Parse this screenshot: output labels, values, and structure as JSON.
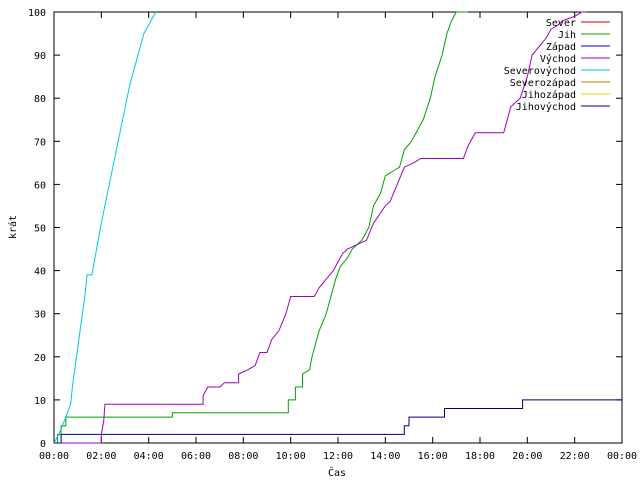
{
  "chart_data": {
    "type": "line",
    "title": "",
    "xlabel": "Čas",
    "ylabel": "krát",
    "xlim": [
      0,
      24
    ],
    "ylim": [
      0,
      100
    ],
    "grid": false,
    "legend_position": "top-right",
    "x_tick_labels": [
      "00:00",
      "02:00",
      "04:00",
      "06:00",
      "08:00",
      "10:00",
      "12:00",
      "14:00",
      "16:00",
      "18:00",
      "20:00",
      "22:00",
      "00:00"
    ],
    "y_tick_labels": [
      "0",
      "10",
      "20",
      "30",
      "40",
      "50",
      "60",
      "70",
      "80",
      "90",
      "100"
    ],
    "series": [
      {
        "name": "Sever",
        "color": "#cc0000",
        "points": []
      },
      {
        "name": "Jih",
        "color": "#00a000",
        "points": [
          [
            0.0,
            0
          ],
          [
            0.15,
            0
          ],
          [
            0.15,
            2
          ],
          [
            0.3,
            2
          ],
          [
            0.3,
            4
          ],
          [
            0.5,
            4
          ],
          [
            0.5,
            6
          ],
          [
            1.0,
            6
          ],
          [
            5.0,
            6
          ],
          [
            5.0,
            7
          ],
          [
            6.0,
            7
          ],
          [
            9.9,
            7
          ],
          [
            9.9,
            10
          ],
          [
            10.2,
            10
          ],
          [
            10.2,
            13
          ],
          [
            10.5,
            13
          ],
          [
            10.5,
            16
          ],
          [
            10.8,
            17
          ],
          [
            10.9,
            20
          ],
          [
            11.0,
            22
          ],
          [
            11.2,
            26
          ],
          [
            11.5,
            30
          ],
          [
            11.7,
            34
          ],
          [
            11.9,
            38
          ],
          [
            12.1,
            41
          ],
          [
            12.4,
            43
          ],
          [
            12.6,
            45
          ],
          [
            12.8,
            46
          ],
          [
            13.0,
            47
          ],
          [
            13.3,
            50
          ],
          [
            13.5,
            55
          ],
          [
            13.8,
            58
          ],
          [
            14.0,
            62
          ],
          [
            14.3,
            63
          ],
          [
            14.6,
            64
          ],
          [
            14.8,
            68
          ],
          [
            15.1,
            70
          ],
          [
            15.4,
            73
          ],
          [
            15.6,
            75
          ],
          [
            15.9,
            80
          ],
          [
            16.1,
            85
          ],
          [
            16.4,
            90
          ],
          [
            16.6,
            95
          ],
          [
            16.8,
            98
          ],
          [
            17.0,
            100
          ],
          [
            17.5,
            100
          ]
        ]
      },
      {
        "name": "Západ",
        "color": "#0000cc",
        "points": []
      },
      {
        "name": "Východ",
        "color": "#a000c0",
        "points": [
          [
            0.0,
            0
          ],
          [
            2.0,
            0
          ],
          [
            2.0,
            2
          ],
          [
            2.1,
            5
          ],
          [
            2.15,
            9
          ],
          [
            3.0,
            9
          ],
          [
            6.0,
            9
          ],
          [
            6.3,
            9
          ],
          [
            6.3,
            11
          ],
          [
            6.5,
            13
          ],
          [
            7.0,
            13
          ],
          [
            7.2,
            14
          ],
          [
            7.8,
            14
          ],
          [
            7.8,
            16
          ],
          [
            8.2,
            17
          ],
          [
            8.5,
            18
          ],
          [
            8.7,
            21
          ],
          [
            9.0,
            21
          ],
          [
            9.2,
            24
          ],
          [
            9.5,
            26
          ],
          [
            9.8,
            30
          ],
          [
            10.0,
            34
          ],
          [
            10.5,
            34
          ],
          [
            11.0,
            34
          ],
          [
            11.2,
            36
          ],
          [
            11.5,
            38
          ],
          [
            11.8,
            40
          ],
          [
            12.0,
            42
          ],
          [
            12.2,
            44
          ],
          [
            12.4,
            45
          ],
          [
            12.8,
            46
          ],
          [
            13.2,
            47
          ],
          [
            13.5,
            51
          ],
          [
            14.0,
            55
          ],
          [
            14.2,
            56
          ],
          [
            14.5,
            60
          ],
          [
            14.8,
            64
          ],
          [
            15.2,
            65
          ],
          [
            15.5,
            66
          ],
          [
            16.5,
            66
          ],
          [
            17.3,
            66
          ],
          [
            17.5,
            69
          ],
          [
            17.8,
            72
          ],
          [
            18.5,
            72
          ],
          [
            19.0,
            72
          ],
          [
            19.3,
            78
          ],
          [
            19.7,
            80
          ],
          [
            20.0,
            85
          ],
          [
            20.2,
            90
          ],
          [
            20.5,
            92
          ],
          [
            20.8,
            94
          ],
          [
            21.0,
            96
          ],
          [
            21.3,
            97
          ],
          [
            21.5,
            98
          ],
          [
            22.0,
            99
          ],
          [
            22.3,
            100
          ],
          [
            22.5,
            100
          ]
        ]
      },
      {
        "name": "Severovýchod",
        "color": "#00c8e0",
        "points": [
          [
            0.0,
            0
          ],
          [
            0.2,
            2
          ],
          [
            0.35,
            4
          ],
          [
            0.5,
            6
          ],
          [
            0.7,
            9
          ],
          [
            0.8,
            14
          ],
          [
            0.9,
            18
          ],
          [
            1.0,
            22
          ],
          [
            1.1,
            26
          ],
          [
            1.2,
            30
          ],
          [
            1.3,
            34
          ],
          [
            1.4,
            39
          ],
          [
            1.6,
            39
          ],
          [
            1.7,
            42
          ],
          [
            2.0,
            51
          ],
          [
            2.3,
            59
          ],
          [
            2.6,
            67
          ],
          [
            2.9,
            75
          ],
          [
            3.2,
            83
          ],
          [
            3.5,
            89
          ],
          [
            3.8,
            95
          ],
          [
            4.0,
            97
          ],
          [
            4.3,
            100
          ]
        ]
      },
      {
        "name": "Severozápad",
        "color": "#c87800",
        "points": []
      },
      {
        "name": "Jihozápad",
        "color": "#e8d800",
        "points": []
      },
      {
        "name": "Jihovýchod",
        "color": "#000080",
        "points": [
          [
            0.0,
            0
          ],
          [
            0.3,
            0
          ],
          [
            0.3,
            2
          ],
          [
            1.0,
            2
          ],
          [
            14.8,
            2
          ],
          [
            14.8,
            4
          ],
          [
            15.0,
            4
          ],
          [
            15.0,
            6
          ],
          [
            16.5,
            6
          ],
          [
            16.5,
            8
          ],
          [
            19.8,
            8
          ],
          [
            19.8,
            10
          ],
          [
            24.0,
            10
          ]
        ]
      }
    ]
  }
}
